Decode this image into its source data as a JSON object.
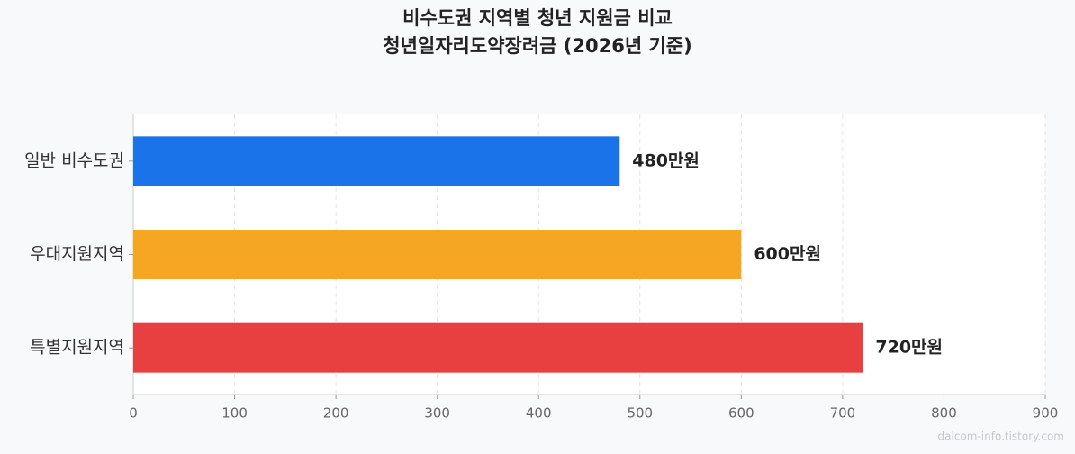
{
  "chart_data": {
    "type": "barh",
    "title": "비수도권 지역별 청년 지원금 비교",
    "subtitle": "청년일자리도약장려금 (2026년 기준)",
    "categories": [
      "일반 비수도권",
      "우대지원지역",
      "특별지원지역"
    ],
    "values": [
      480,
      600,
      720
    ],
    "value_labels": [
      "480만원",
      "600만원",
      "720만원"
    ],
    "colors": [
      "#1a73e8",
      "#f5a623",
      "#e84040"
    ],
    "xlim": [
      0,
      900
    ],
    "xticks": [
      0,
      100,
      200,
      300,
      400,
      500,
      600,
      700,
      800,
      900
    ],
    "grid": true,
    "watermark": "dalcom-info.tistory.com"
  }
}
